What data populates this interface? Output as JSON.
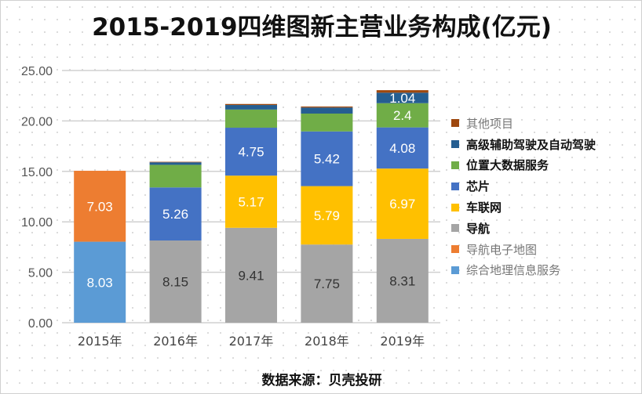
{
  "title": "2015-2019四维图新主营业务构成(亿元)",
  "source": "数据来源：贝壳投研",
  "chart_data": {
    "type": "bar",
    "stacked": true,
    "title": "2015-2019四维图新主营业务构成(亿元)",
    "categories": [
      "2015年",
      "2016年",
      "2017年",
      "2018年",
      "2019年"
    ],
    "ylim": [
      0,
      25
    ],
    "yticks": [
      "0.00",
      "5.00",
      "10.00",
      "15.00",
      "20.00",
      "25.00"
    ],
    "legend_position": "right",
    "series": [
      {
        "name": "综合地理信息服务",
        "color": "#5B9BD5",
        "values": [
          8.03,
          0,
          0,
          0,
          0
        ],
        "labels": [
          "8.03",
          "",
          "",
          "",
          ""
        ]
      },
      {
        "name": "导航电子地图",
        "color": "#ED7D31",
        "values": [
          7.03,
          0,
          0,
          0,
          0
        ],
        "labels": [
          "7.03",
          "",
          "",
          "",
          ""
        ]
      },
      {
        "name": "导航",
        "color": "#A5A5A5",
        "values": [
          0,
          8.15,
          9.41,
          7.75,
          8.31
        ],
        "labels": [
          "",
          "8.15",
          "9.41",
          "7.75",
          "8.31"
        ]
      },
      {
        "name": "车联网",
        "color": "#FFC000",
        "values": [
          0,
          0,
          5.17,
          5.79,
          6.97
        ],
        "labels": [
          "",
          "",
          "5.17",
          "5.79",
          "6.97"
        ]
      },
      {
        "name": "芯片",
        "color": "#4472C4",
        "values": [
          0,
          5.26,
          4.75,
          5.42,
          4.08
        ],
        "labels": [
          "",
          "5.26",
          "4.75",
          "5.42",
          "4.08"
        ]
      },
      {
        "name": "位置大数据服务",
        "color": "#70AD47",
        "values": [
          0,
          2.24,
          1.8,
          1.77,
          2.4
        ],
        "labels": [
          "",
          "",
          "",
          "",
          "2.4"
        ]
      },
      {
        "name": "高级辅助驾驶及自动驾驶",
        "color": "#255E91",
        "values": [
          0,
          0.25,
          0.45,
          0.6,
          1.04
        ],
        "labels": [
          "",
          "",
          "",
          "",
          "1.04"
        ]
      },
      {
        "name": "其他项目",
        "color": "#9E480E",
        "values": [
          0,
          0.05,
          0.1,
          0.1,
          0.25
        ],
        "labels": [
          "",
          "",
          "",
          "",
          ""
        ]
      }
    ],
    "legend_order": [
      "其他项目",
      "高级辅助驾驶及自动驾驶",
      "位置大数据服务",
      "芯片",
      "车联网",
      "导航",
      "导航电子地图",
      "综合地理信息服务"
    ],
    "legend_bold": [
      "高级辅助驾驶及自动驾驶",
      "位置大数据服务",
      "芯片",
      "车联网",
      "导航"
    ]
  }
}
